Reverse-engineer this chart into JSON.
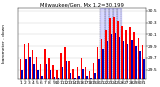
{
  "title": "Milwaukee/Gen. Mx 1.2=30.199",
  "subtitle": "barometer - down",
  "ylim": [
    29.35,
    30.55
  ],
  "bar_width": 0.38,
  "high_color": "#ff0000",
  "low_color": "#0000bb",
  "highlight_color": "#aaaaff",
  "background_color": "#ffffff",
  "grid_color": "#cccccc",
  "x_labels": [
    "1",
    "2",
    "3",
    "4",
    "5",
    "6",
    "7",
    "8",
    "9",
    "10",
    "11",
    "12",
    "13",
    "14",
    "15",
    "16",
    "17",
    "18",
    "19",
    "20",
    "21",
    "22",
    "23",
    "24",
    "25",
    "26",
    "27",
    "28",
    "29",
    "30",
    "31"
  ],
  "highs": [
    29.68,
    29.93,
    29.96,
    29.84,
    29.72,
    29.6,
    29.85,
    29.7,
    29.58,
    29.5,
    29.78,
    29.88,
    29.65,
    29.52,
    29.55,
    29.7,
    29.55,
    29.48,
    29.62,
    29.88,
    30.02,
    30.18,
    30.38,
    30.4,
    30.32,
    30.24,
    30.18,
    30.22,
    30.14,
    30.04,
    29.92
  ],
  "lows": [
    29.5,
    29.68,
    29.72,
    29.6,
    29.5,
    29.4,
    29.6,
    29.5,
    29.38,
    29.36,
    29.55,
    29.65,
    29.44,
    29.36,
    29.4,
    29.52,
    29.4,
    29.36,
    29.44,
    29.68,
    29.85,
    29.98,
    30.1,
    30.12,
    30.05,
    29.98,
    29.94,
    30.0,
    29.9,
    29.82,
    29.68
  ],
  "yticks": [
    29.5,
    29.7,
    29.9,
    30.1,
    30.3,
    30.5
  ],
  "ytick_labels": [
    "29.5",
    "29.7",
    "29.9",
    "30.1",
    "30.3",
    "30.5"
  ],
  "highlight_indices": [
    20,
    21,
    22,
    23,
    24
  ],
  "tick_fontsize": 3.2,
  "title_fontsize": 3.8,
  "fig_width": 1.6,
  "fig_height": 0.87,
  "dpi": 100
}
